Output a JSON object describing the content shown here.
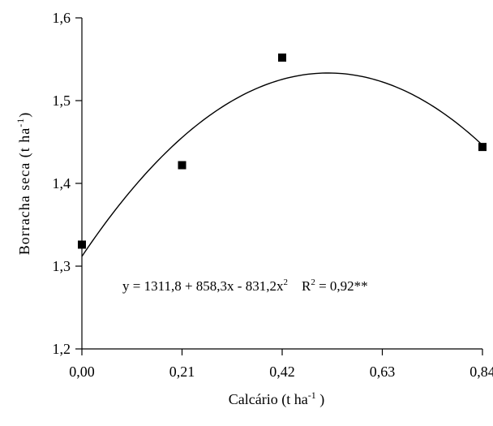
{
  "chart_data": {
    "type": "scatter",
    "title": "",
    "xlabel": {
      "base": "Calcário (t ha",
      "sup": "-1",
      "end": " )"
    },
    "ylabel": {
      "base": "Borracha seca (t ha",
      "sup": "-1",
      "end": ")"
    },
    "xlim": [
      0,
      0.84
    ],
    "ylim": [
      1.2,
      1.6
    ],
    "x_ticks": [
      0,
      0.21,
      0.42,
      0.63,
      0.84
    ],
    "x_tick_labels": [
      "0,00",
      "0,21",
      "0,42",
      "0,63",
      "0,84"
    ],
    "y_ticks": [
      1.2,
      1.3,
      1.4,
      1.5,
      1.6
    ],
    "y_tick_labels": [
      "1,2",
      "1,3",
      "1,4",
      "1,5",
      "1,6"
    ],
    "grid": false,
    "series": [
      {
        "marker": "square",
        "x": [
          0,
          0.21,
          0.42,
          0.84
        ],
        "y": [
          1.326,
          1.422,
          1.552,
          1.444
        ]
      }
    ],
    "fit": {
      "type": "quadratic",
      "coefficients": [
        1.3118,
        0.8583,
        -0.8312
      ]
    },
    "annotation": {
      "part1": "y = 1311,8 + 858,3x - 831,2x",
      "part1_sup": "2",
      "part2": "R",
      "part2_sup": "2",
      "part3": " = 0,92**"
    }
  }
}
